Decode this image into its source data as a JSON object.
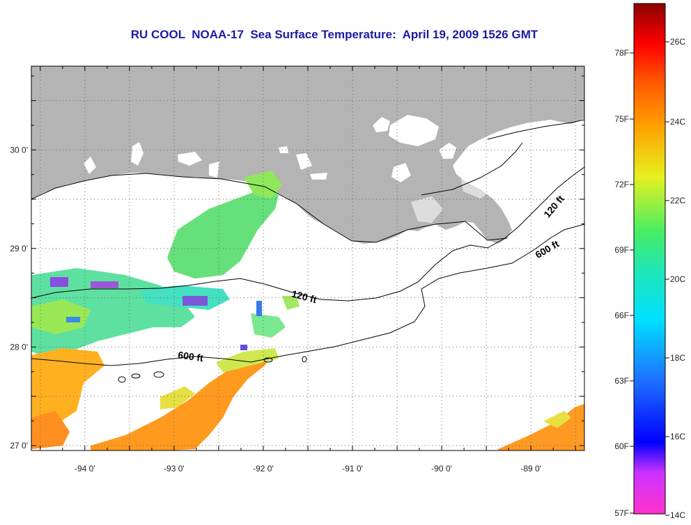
{
  "title": "RU COOL  NOAA-17  Sea Surface Temperature:  April 19, 2009 1526 GMT",
  "map": {
    "lon_range": [
      -94.6,
      -88.4
    ],
    "lat_range": [
      26.95,
      30.85
    ],
    "lon_ticks": [
      {
        "v": -94,
        "label": "-94 0'"
      },
      {
        "v": -93,
        "label": "-93 0'"
      },
      {
        "v": -92,
        "label": "-92 0'"
      },
      {
        "v": -91,
        "label": "-91 0'"
      },
      {
        "v": -90,
        "label": "-90 0'"
      },
      {
        "v": -89,
        "label": "-89 0'"
      }
    ],
    "lat_ticks": [
      {
        "v": 30,
        "label": "30 0'"
      },
      {
        "v": 29,
        "label": "29 0'"
      },
      {
        "v": 28,
        "label": "28 0'"
      },
      {
        "v": 27,
        "label": "27 0'"
      }
    ],
    "contours": [
      {
        "label": "120 ft",
        "color": "#000000"
      },
      {
        "label": "600 ft",
        "color": "#000000"
      }
    ],
    "land_color": "#b4b4b4",
    "ocean_color": "#ffffff"
  },
  "colorbar": {
    "fahrenheit_labels": [
      "78F",
      "75F",
      "72F",
      "69F",
      "66F",
      "63F",
      "60F",
      "57F"
    ],
    "celsius_labels": [
      "26C",
      "24C",
      "22C",
      "20C",
      "18C",
      "16C",
      "14C"
    ],
    "colors": [
      "#8b0000",
      "#ff0000",
      "#ff8c00",
      "#ffff00",
      "#00ff7f",
      "#00ffff",
      "#1e90ff",
      "#0000ff",
      "#8a2be2",
      "#ff00ff"
    ]
  }
}
